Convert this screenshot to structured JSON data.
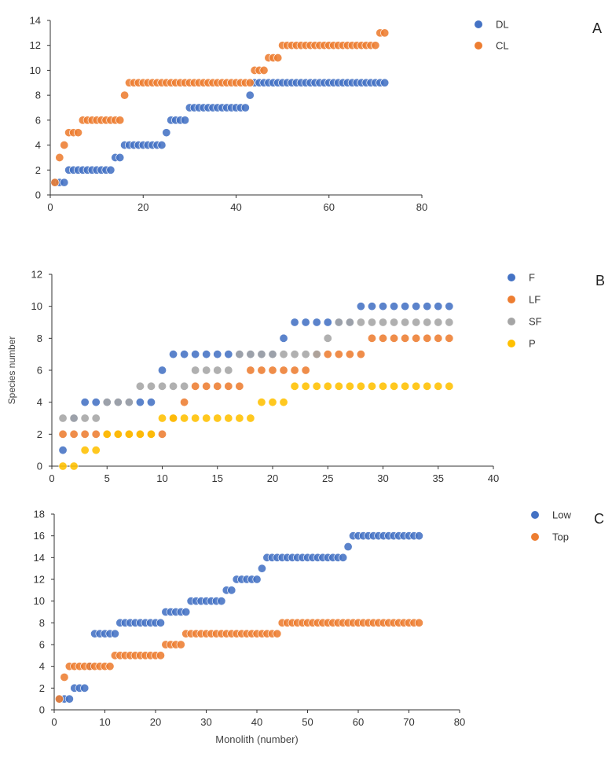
{
  "chart_data": [
    {
      "type": "scatter",
      "panel_label": "A",
      "xlabel": "",
      "ylabel": "",
      "xlim": [
        0,
        80
      ],
      "ylim": [
        0,
        14
      ],
      "xticks": [
        0,
        20,
        40,
        60,
        80
      ],
      "yticks": [
        0,
        2,
        4,
        6,
        8,
        10,
        12,
        14
      ],
      "grid": false,
      "trendlines": true,
      "legend_position": "right",
      "series": [
        {
          "name": "DL",
          "color": "#4472C4",
          "x": [
            1,
            2,
            3,
            4,
            5,
            6,
            7,
            8,
            9,
            10,
            11,
            12,
            13,
            14,
            15,
            16,
            17,
            18,
            19,
            20,
            21,
            22,
            23,
            24,
            25,
            26,
            27,
            28,
            29,
            30,
            31,
            32,
            33,
            34,
            35,
            36,
            37,
            38,
            39,
            40,
            41,
            42,
            43,
            44,
            45,
            46,
            47,
            48,
            49,
            50,
            51,
            52,
            53,
            54,
            55,
            56,
            57,
            58,
            59,
            60,
            61,
            62,
            63,
            64,
            65,
            66,
            67,
            68,
            69,
            70,
            71,
            72
          ],
          "y": [
            1,
            1,
            1,
            2,
            2,
            2,
            2,
            2,
            2,
            2,
            2,
            2,
            2,
            3,
            3,
            4,
            4,
            4,
            4,
            4,
            4,
            4,
            4,
            4,
            5,
            6,
            6,
            6,
            6,
            7,
            7,
            7,
            7,
            7,
            7,
            7,
            7,
            7,
            7,
            7,
            7,
            7,
            8,
            9,
            9,
            9,
            9,
            9,
            9,
            9,
            9,
            9,
            9,
            9,
            9,
            9,
            9,
            9,
            9,
            9,
            9,
            9,
            9,
            9,
            9,
            9,
            9,
            9,
            9,
            9,
            9,
            9
          ]
        },
        {
          "name": "CL",
          "color": "#ED7D31",
          "x": [
            1,
            2,
            3,
            4,
            5,
            6,
            7,
            8,
            9,
            10,
            11,
            12,
            13,
            14,
            15,
            16,
            17,
            18,
            19,
            20,
            21,
            22,
            23,
            24,
            25,
            26,
            27,
            28,
            29,
            30,
            31,
            32,
            33,
            34,
            35,
            36,
            37,
            38,
            39,
            40,
            41,
            42,
            43,
            44,
            45,
            46,
            47,
            48,
            49,
            50,
            51,
            52,
            53,
            54,
            55,
            56,
            57,
            58,
            59,
            60,
            61,
            62,
            63,
            64,
            65,
            66,
            67,
            68,
            69,
            70,
            71,
            72
          ],
          "y": [
            1,
            3,
            4,
            5,
            5,
            5,
            6,
            6,
            6,
            6,
            6,
            6,
            6,
            6,
            6,
            8,
            9,
            9,
            9,
            9,
            9,
            9,
            9,
            9,
            9,
            9,
            9,
            9,
            9,
            9,
            9,
            9,
            9,
            9,
            9,
            9,
            9,
            9,
            9,
            9,
            9,
            9,
            9,
            10,
            10,
            10,
            11,
            11,
            11,
            12,
            12,
            12,
            12,
            12,
            12,
            12,
            12,
            12,
            12,
            12,
            12,
            12,
            12,
            12,
            12,
            12,
            12,
            12,
            12,
            12,
            13,
            13
          ]
        }
      ]
    },
    {
      "type": "scatter",
      "panel_label": "B",
      "xlabel": "",
      "ylabel": "Species number",
      "xlim": [
        0,
        40
      ],
      "ylim": [
        0,
        12
      ],
      "xticks": [
        0,
        5,
        10,
        15,
        20,
        25,
        30,
        35,
        40
      ],
      "yticks": [
        0,
        2,
        4,
        6,
        8,
        10,
        12
      ],
      "grid": false,
      "trendlines": true,
      "legend_position": "right",
      "series": [
        {
          "name": "F",
          "color": "#4472C4",
          "x": [
            1,
            2,
            3,
            4,
            5,
            6,
            7,
            8,
            9,
            10,
            11,
            12,
            13,
            14,
            15,
            16,
            17,
            18,
            19,
            20,
            21,
            22,
            23,
            24,
            25,
            26,
            27,
            28,
            29,
            30,
            31,
            32,
            33,
            34,
            35,
            36
          ],
          "y": [
            1,
            3,
            4,
            4,
            4,
            4,
            4,
            4,
            4,
            6,
            7,
            7,
            7,
            7,
            7,
            7,
            7,
            7,
            7,
            7,
            8,
            9,
            9,
            9,
            9,
            9,
            9,
            10,
            10,
            10,
            10,
            10,
            10,
            10,
            10,
            10
          ]
        },
        {
          "name": "LF",
          "color": "#ED7D31",
          "x": [
            1,
            2,
            3,
            4,
            5,
            6,
            7,
            8,
            9,
            10,
            11,
            12,
            13,
            14,
            15,
            16,
            17,
            18,
            19,
            20,
            21,
            22,
            23,
            24,
            25,
            26,
            27,
            28,
            29,
            30,
            31,
            32,
            33,
            34,
            35,
            36
          ],
          "y": [
            2,
            2,
            2,
            2,
            2,
            2,
            2,
            2,
            2,
            2,
            3,
            4,
            5,
            5,
            5,
            5,
            5,
            6,
            6,
            6,
            6,
            6,
            6,
            7,
            7,
            7,
            7,
            7,
            8,
            8,
            8,
            8,
            8,
            8,
            8,
            8
          ]
        },
        {
          "name": "SF",
          "color": "#A5A5A5",
          "x": [
            1,
            2,
            3,
            4,
            5,
            6,
            7,
            8,
            9,
            10,
            11,
            12,
            13,
            14,
            15,
            16,
            17,
            18,
            19,
            20,
            21,
            22,
            23,
            24,
            25,
            26,
            27,
            28,
            29,
            30,
            31,
            32,
            33,
            34,
            35,
            36
          ],
          "y": [
            3,
            3,
            3,
            3,
            4,
            4,
            4,
            5,
            5,
            5,
            5,
            5,
            6,
            6,
            6,
            6,
            7,
            7,
            7,
            7,
            7,
            7,
            7,
            7,
            8,
            9,
            9,
            9,
            9,
            9,
            9,
            9,
            9,
            9,
            9,
            9
          ]
        },
        {
          "name": "P",
          "color": "#FFC000",
          "x": [
            1,
            2,
            3,
            4,
            5,
            6,
            7,
            8,
            9,
            10,
            11,
            12,
            13,
            14,
            15,
            16,
            17,
            18,
            19,
            20,
            21,
            22,
            23,
            24,
            25,
            26,
            27,
            28,
            29,
            30,
            31,
            32,
            33,
            34,
            35,
            36
          ],
          "y": [
            0,
            0,
            1,
            1,
            2,
            2,
            2,
            2,
            2,
            3,
            3,
            3,
            3,
            3,
            3,
            3,
            3,
            3,
            4,
            4,
            4,
            5,
            5,
            5,
            5,
            5,
            5,
            5,
            5,
            5,
            5,
            5,
            5,
            5,
            5,
            5
          ]
        }
      ]
    },
    {
      "type": "scatter",
      "panel_label": "C",
      "xlabel": "Monolith (number)",
      "ylabel": "",
      "xlim": [
        0,
        80
      ],
      "ylim": [
        0,
        18
      ],
      "xticks": [
        0,
        10,
        20,
        30,
        40,
        50,
        60,
        70,
        80
      ],
      "yticks": [
        0,
        2,
        4,
        6,
        8,
        10,
        12,
        14,
        16,
        18
      ],
      "grid": false,
      "trendlines": true,
      "legend_position": "right",
      "series": [
        {
          "name": "Low",
          "color": "#4472C4",
          "x": [
            1,
            2,
            3,
            4,
            5,
            6,
            7,
            8,
            9,
            10,
            11,
            12,
            13,
            14,
            15,
            16,
            17,
            18,
            19,
            20,
            21,
            22,
            23,
            24,
            25,
            26,
            27,
            28,
            29,
            30,
            31,
            32,
            33,
            34,
            35,
            36,
            37,
            38,
            39,
            40,
            41,
            42,
            43,
            44,
            45,
            46,
            47,
            48,
            49,
            50,
            51,
            52,
            53,
            54,
            55,
            56,
            57,
            58,
            59,
            60,
            61,
            62,
            63,
            64,
            65,
            66,
            67,
            68,
            69,
            70,
            71,
            72
          ],
          "y": [
            1,
            1,
            1,
            2,
            2,
            2,
            4,
            7,
            7,
            7,
            7,
            7,
            8,
            8,
            8,
            8,
            8,
            8,
            8,
            8,
            8,
            9,
            9,
            9,
            9,
            9,
            10,
            10,
            10,
            10,
            10,
            10,
            10,
            11,
            11,
            12,
            12,
            12,
            12,
            12,
            13,
            14,
            14,
            14,
            14,
            14,
            14,
            14,
            14,
            14,
            14,
            14,
            14,
            14,
            14,
            14,
            14,
            15,
            16,
            16,
            16,
            16,
            16,
            16,
            16,
            16,
            16,
            16,
            16,
            16,
            16,
            16
          ]
        },
        {
          "name": "Top",
          "color": "#ED7D31",
          "x": [
            1,
            2,
            3,
            4,
            5,
            6,
            7,
            8,
            9,
            10,
            11,
            12,
            13,
            14,
            15,
            16,
            17,
            18,
            19,
            20,
            21,
            22,
            23,
            24,
            25,
            26,
            27,
            28,
            29,
            30,
            31,
            32,
            33,
            34,
            35,
            36,
            37,
            38,
            39,
            40,
            41,
            42,
            43,
            44,
            45,
            46,
            47,
            48,
            49,
            50,
            51,
            52,
            53,
            54,
            55,
            56,
            57,
            58,
            59,
            60,
            61,
            62,
            63,
            64,
            65,
            66,
            67,
            68,
            69,
            70,
            71,
            72
          ],
          "y": [
            1,
            3,
            4,
            4,
            4,
            4,
            4,
            4,
            4,
            4,
            4,
            5,
            5,
            5,
            5,
            5,
            5,
            5,
            5,
            5,
            5,
            6,
            6,
            6,
            6,
            7,
            7,
            7,
            7,
            7,
            7,
            7,
            7,
            7,
            7,
            7,
            7,
            7,
            7,
            7,
            7,
            7,
            7,
            7,
            8,
            8,
            8,
            8,
            8,
            8,
            8,
            8,
            8,
            8,
            8,
            8,
            8,
            8,
            8,
            8,
            8,
            8,
            8,
            8,
            8,
            8,
            8,
            8,
            8,
            8,
            8,
            8
          ]
        }
      ]
    }
  ]
}
